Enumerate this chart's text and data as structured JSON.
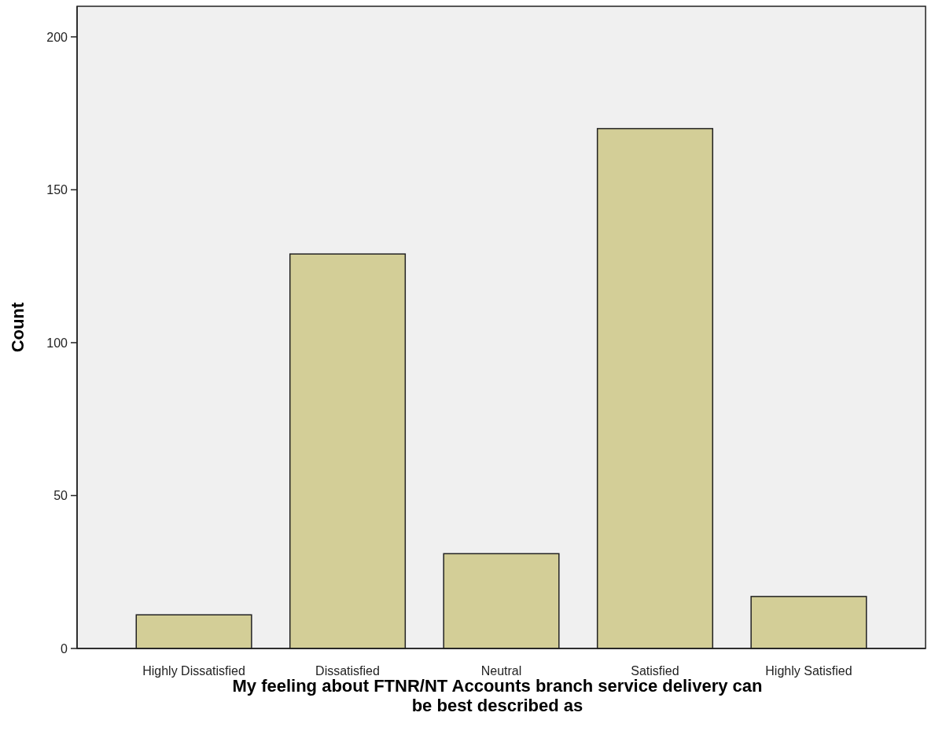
{
  "chart_data": {
    "type": "bar",
    "xlabel": "My feeling about FTNR/NT Accounts branch service delivery can be best described as",
    "ylabel": "Count",
    "categories": [
      "Highly Dissatisfied",
      "Dissatisfied",
      "Neutral",
      "Satisfied",
      "Highly Satisfied"
    ],
    "values": [
      11,
      129,
      31,
      170,
      17
    ],
    "color": "#d3ce97",
    "ylim": [
      0,
      210
    ],
    "yticks": [
      0,
      50,
      100,
      150,
      200
    ],
    "grid": false
  }
}
